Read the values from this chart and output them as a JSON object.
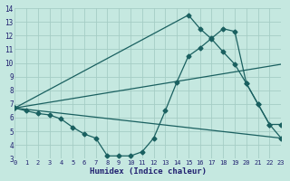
{
  "xlabel": "Humidex (Indice chaleur)",
  "bg_color": "#c5e8e0",
  "grid_color": "#a5cdc5",
  "line_color": "#1a6060",
  "xlim": [
    0,
    23
  ],
  "ylim": [
    3,
    14
  ],
  "xtick_labels": [
    "0",
    "1",
    "2",
    "3",
    "4",
    "5",
    "6",
    "7",
    "8",
    "9",
    "10",
    "11",
    "12",
    "13",
    "14",
    "15",
    "16",
    "17",
    "18",
    "19",
    "20",
    "21",
    "22",
    "23"
  ],
  "xticks": [
    0,
    1,
    2,
    3,
    4,
    5,
    6,
    7,
    8,
    9,
    10,
    11,
    12,
    13,
    14,
    15,
    16,
    17,
    18,
    19,
    20,
    21,
    22,
    23
  ],
  "yticks": [
    3,
    4,
    5,
    6,
    7,
    8,
    9,
    10,
    11,
    12,
    13,
    14
  ],
  "series": [
    {
      "x": [
        0,
        1,
        2,
        3,
        4,
        5,
        6,
        7,
        8,
        9,
        10,
        11,
        12,
        13,
        14,
        15,
        16,
        17,
        18,
        19,
        20,
        21,
        22,
        23
      ],
      "y": [
        6.7,
        6.5,
        6.3,
        6.2,
        5.9,
        5.3,
        4.8,
        4.5,
        3.2,
        3.2,
        3.2,
        3.5,
        4.5,
        6.5,
        8.6,
        10.5,
        11.1,
        11.8,
        12.5,
        12.3,
        8.5,
        7.0,
        5.5,
        5.5
      ],
      "marker": "D",
      "markersize": 2.5,
      "linewidth": 0.9
    },
    {
      "x": [
        0,
        15,
        16,
        17,
        18,
        19,
        20,
        21,
        22,
        23
      ],
      "y": [
        6.7,
        13.5,
        12.5,
        11.75,
        10.8,
        9.9,
        8.5,
        7.0,
        5.5,
        4.5
      ],
      "marker": "D",
      "markersize": 2.5,
      "linewidth": 0.9
    },
    {
      "x": [
        0,
        23
      ],
      "y": [
        6.7,
        9.9
      ],
      "marker": null,
      "markersize": 0,
      "linewidth": 0.9
    },
    {
      "x": [
        0,
        23
      ],
      "y": [
        6.7,
        4.5
      ],
      "marker": null,
      "markersize": 0,
      "linewidth": 0.9
    }
  ]
}
